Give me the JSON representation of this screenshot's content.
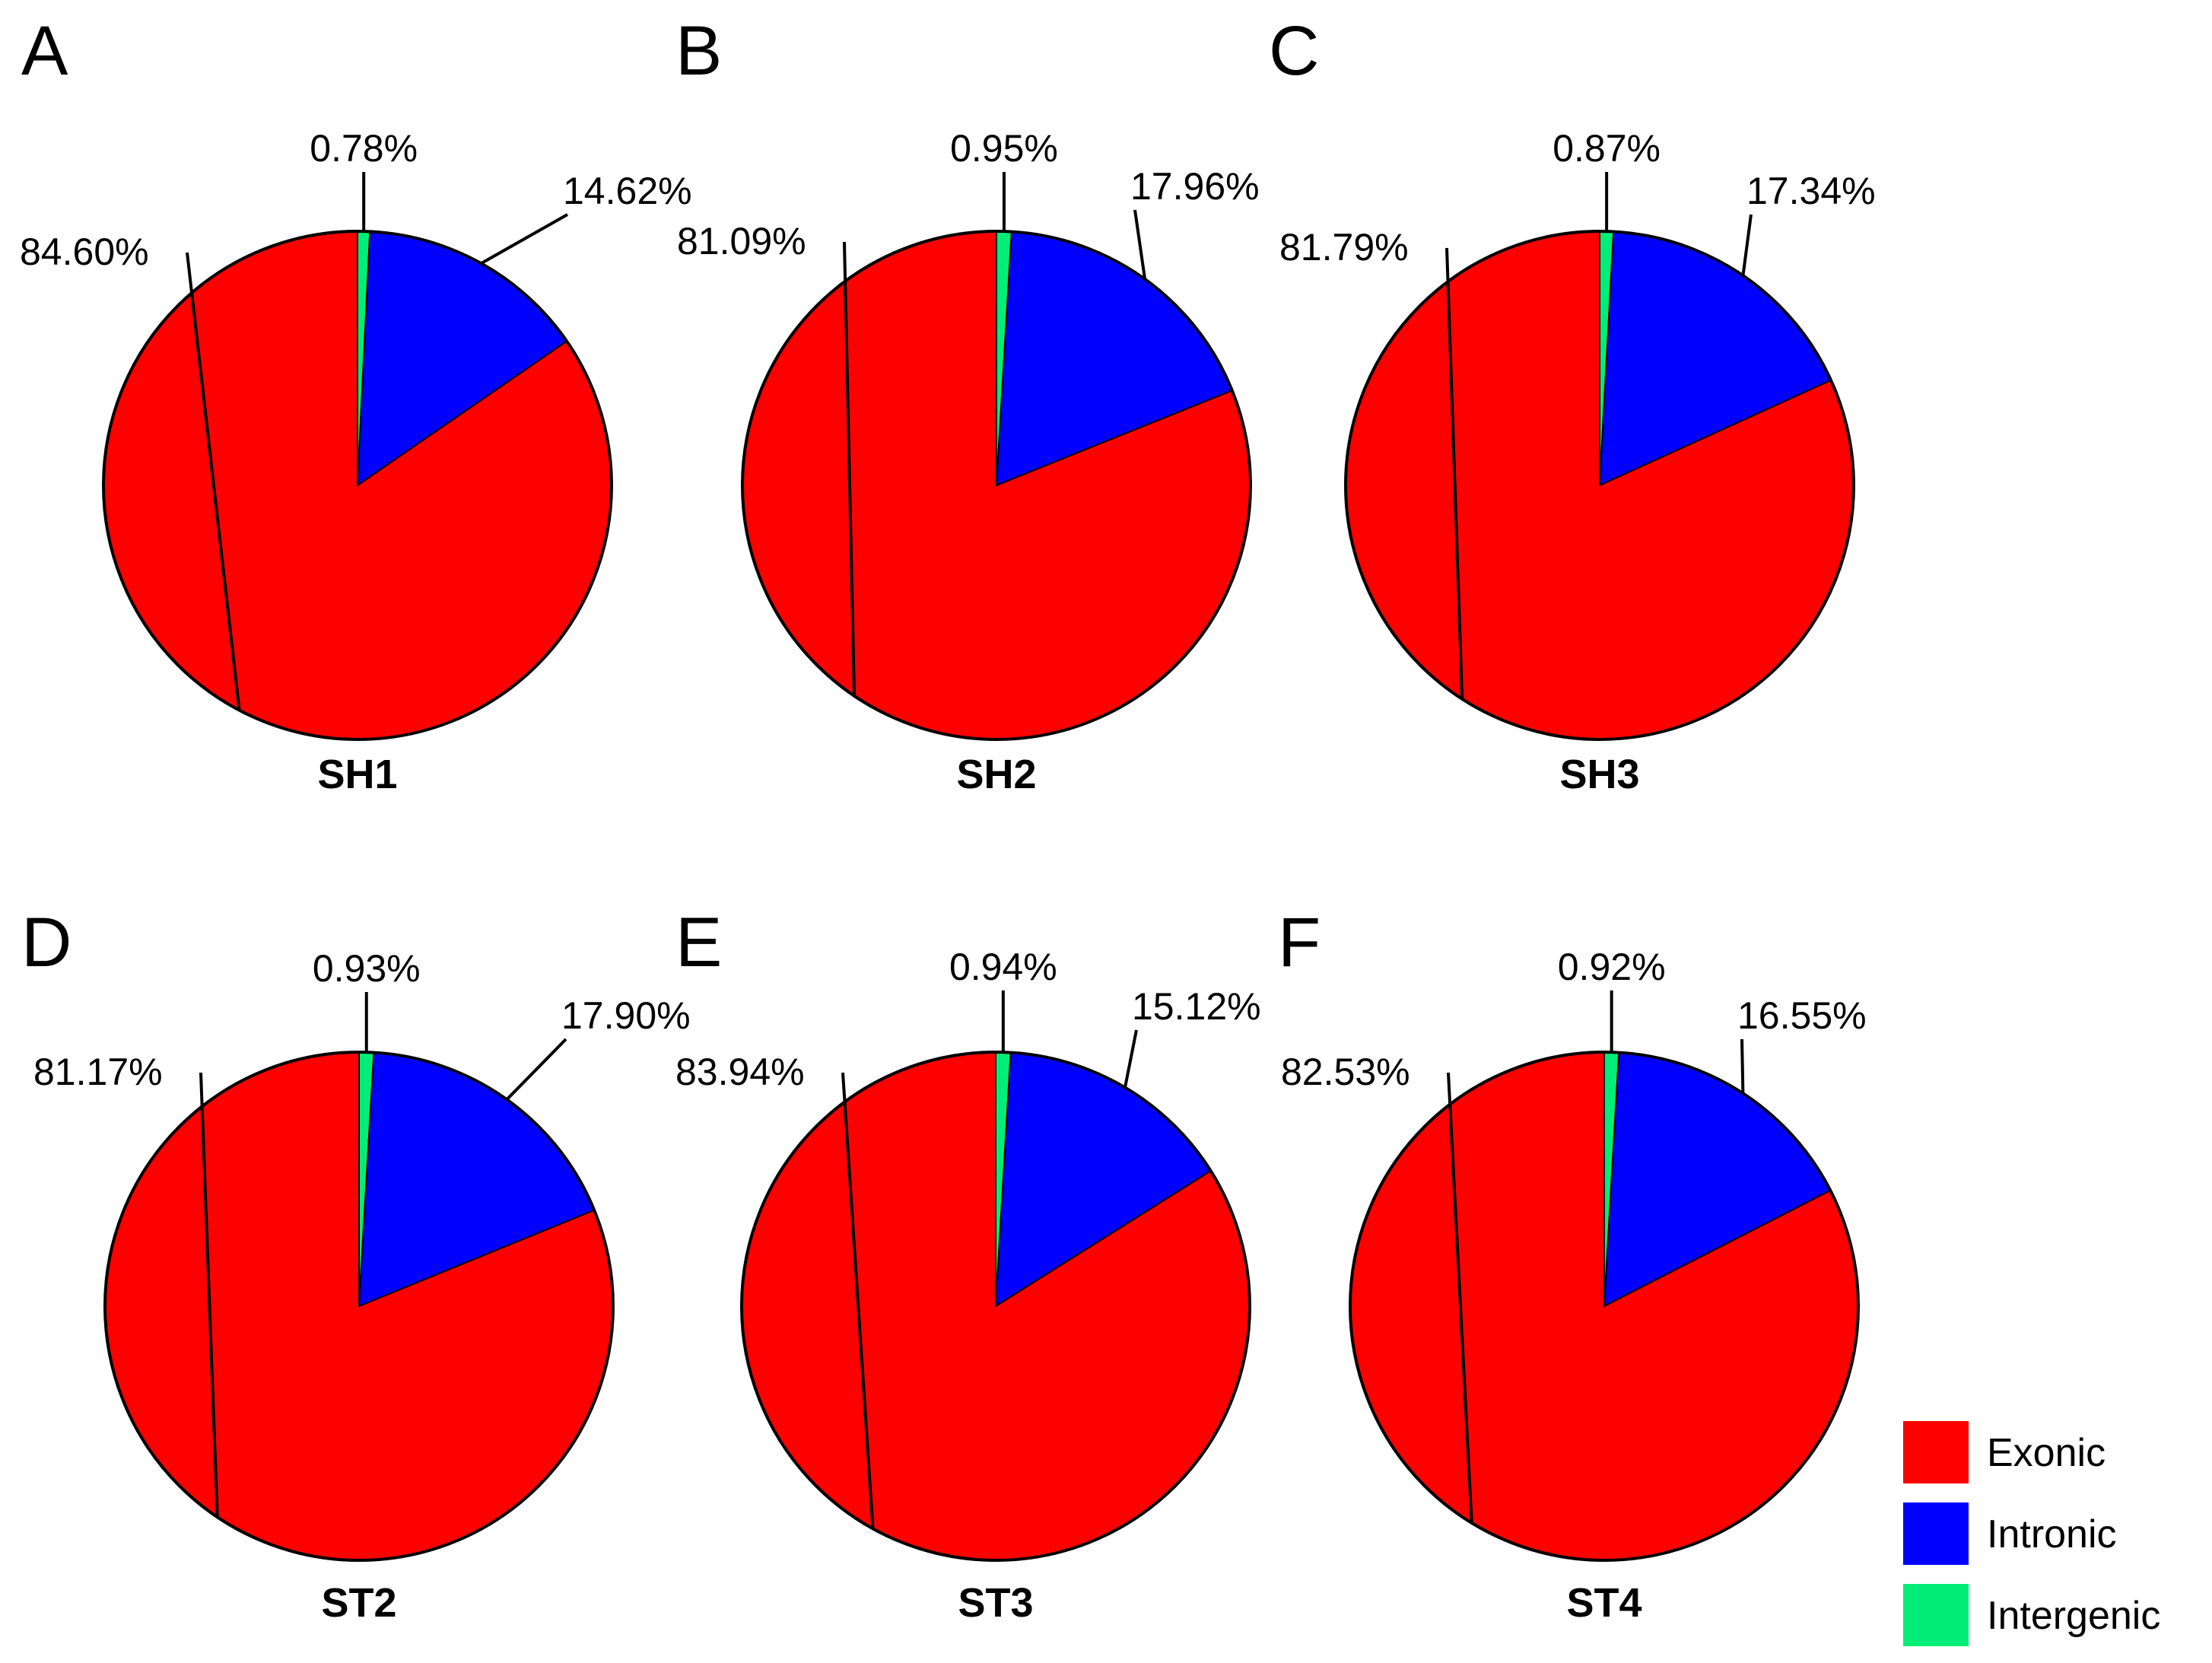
{
  "colors": {
    "Exonic": "#ff0000",
    "Intronic": "#0000ff",
    "Intergenic": "#00ee77"
  },
  "legend": [
    "Exonic",
    "Intronic",
    "Intergenic"
  ],
  "chart_data": [
    {
      "type": "pie",
      "panel": "A",
      "title": "SH1",
      "categories": [
        "Intergenic",
        "Intronic",
        "Exonic"
      ],
      "values": [
        0.78,
        14.62,
        84.6
      ],
      "labels": [
        "0.78%",
        "14.62%",
        "84.60%"
      ]
    },
    {
      "type": "pie",
      "panel": "B",
      "title": "SH2",
      "categories": [
        "Intergenic",
        "Intronic",
        "Exonic"
      ],
      "values": [
        0.95,
        17.96,
        81.09
      ],
      "labels": [
        "0.95%",
        "17.96%",
        "81.09%"
      ]
    },
    {
      "type": "pie",
      "panel": "C",
      "title": "SH3",
      "categories": [
        "Intergenic",
        "Intronic",
        "Exonic"
      ],
      "values": [
        0.87,
        17.34,
        81.79
      ],
      "labels": [
        "0.87%",
        "17.34%",
        "81.79%"
      ]
    },
    {
      "type": "pie",
      "panel": "D",
      "title": "ST2",
      "categories": [
        "Intergenic",
        "Intronic",
        "Exonic"
      ],
      "values": [
        0.93,
        17.9,
        81.17
      ],
      "labels": [
        "0.93%",
        "17.90%",
        "81.17%"
      ]
    },
    {
      "type": "pie",
      "panel": "E",
      "title": "ST3",
      "categories": [
        "Intergenic",
        "Intronic",
        "Exonic"
      ],
      "values": [
        0.94,
        15.12,
        83.94
      ],
      "labels": [
        "0.94%",
        "15.12%",
        "83.94%"
      ]
    },
    {
      "type": "pie",
      "panel": "F",
      "title": "ST4",
      "categories": [
        "Intergenic",
        "Intronic",
        "Exonic"
      ],
      "values": [
        0.92,
        16.55,
        82.53
      ],
      "labels": [
        "0.92%",
        "16.55%",
        "82.53%"
      ]
    }
  ]
}
